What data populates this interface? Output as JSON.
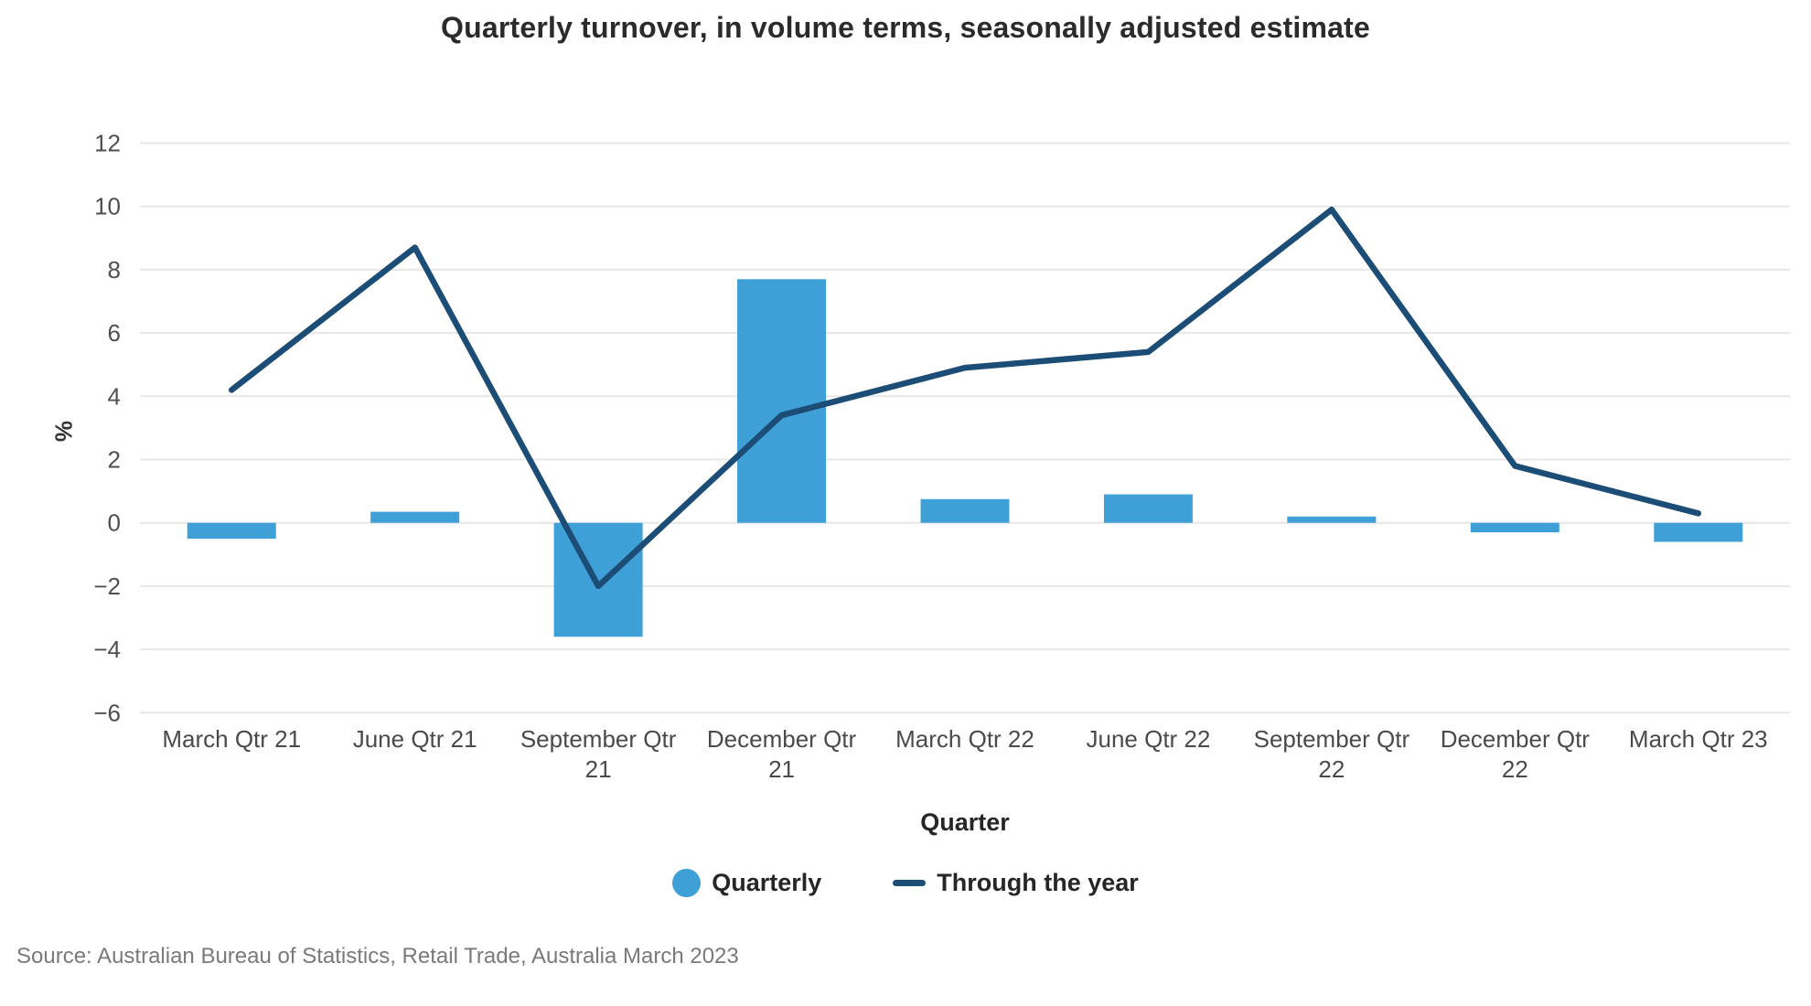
{
  "title": "Quarterly turnover, in volume terms, seasonally adjusted estimate",
  "chart_data": {
    "type": "bar",
    "subtype": "combo-bar-line",
    "title": "Quarterly turnover, in volume terms, seasonally adjusted estimate",
    "categories": [
      "March Qtr 21",
      "June Qtr 21",
      "September Qtr 21",
      "December Qtr 21",
      "March Qtr 22",
      "June Qtr 22",
      "September Qtr 22",
      "December Qtr 22",
      "March Qtr 23"
    ],
    "series": [
      {
        "name": "Quarterly",
        "type": "bar",
        "color": "#3fa0d8",
        "values": [
          -0.5,
          0.35,
          -3.6,
          7.7,
          0.75,
          0.9,
          0.2,
          -0.3,
          -0.6
        ]
      },
      {
        "name": "Through the year",
        "type": "line",
        "color": "#1b4d76",
        "values": [
          4.2,
          8.7,
          -2.0,
          3.4,
          4.9,
          5.4,
          9.9,
          1.8,
          0.3
        ]
      }
    ],
    "xlabel": "Quarter",
    "ylabel": "%",
    "ylim": [
      -6,
      12
    ],
    "y_ticks": [
      12,
      10,
      8,
      6,
      4,
      2,
      0,
      -2,
      -4,
      -6
    ],
    "y_tick_labels": [
      "12",
      "10",
      "8",
      "6",
      "4",
      "2",
      "0",
      "−2",
      "−4",
      "−6"
    ],
    "grid": "horizontal-on",
    "legend_position": "bottom-center"
  },
  "legend": {
    "items": [
      {
        "label": "Quarterly",
        "marker": "circle-icon",
        "color": "#3fa0d8"
      },
      {
        "label": "Through the year",
        "marker": "line-icon",
        "color": "#1b4d76"
      }
    ]
  },
  "source": "Source: Australian Bureau of Statistics, Retail Trade, Australia March 2023",
  "colors": {
    "bar": "#3fa0d8",
    "line": "#1b4d76",
    "grid": "#e7e7e7",
    "title_text": "#2b2b2b",
    "tick_text": "#4f4f4f",
    "x_tick_text": "#4a4a4a",
    "source_text": "#7a7a7a"
  }
}
